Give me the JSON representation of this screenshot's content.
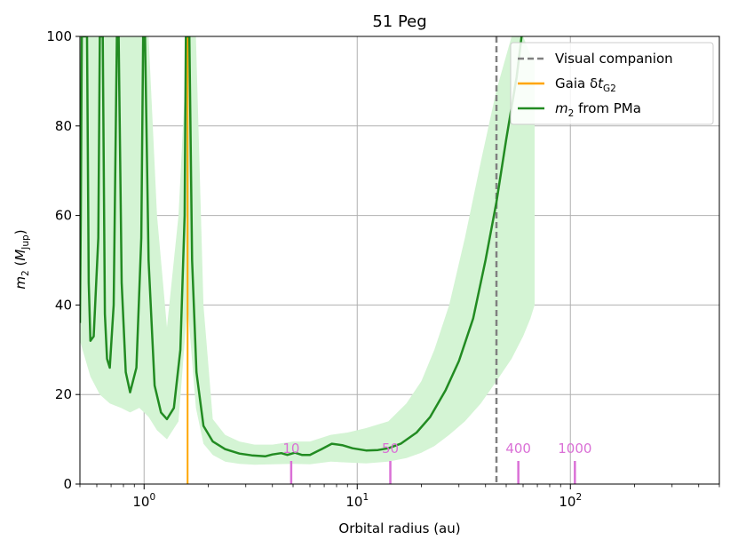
{
  "chart_data": {
    "type": "line",
    "title": "51 Peg",
    "xlabel": "Orbital radius (au)",
    "ylabel": "m2 (MJup)",
    "xscale": "log",
    "xlim": [
      0.5,
      500
    ],
    "ylim": [
      0,
      100
    ],
    "grid": true,
    "legend_placement": "top-right",
    "x_ticks": [
      {
        "value": 1,
        "base": "10",
        "exp": "0"
      },
      {
        "value": 10,
        "base": "10",
        "exp": "1"
      },
      {
        "value": 100,
        "base": "10",
        "exp": "2"
      }
    ],
    "y_ticks": [
      0,
      20,
      40,
      60,
      80,
      100
    ],
    "legend": [
      {
        "label": "Visual companion",
        "style": "dashed",
        "color": "#808080"
      },
      {
        "label": "Gaia δt",
        "sub": "G2",
        "style": "solid",
        "color": "#ffa500"
      },
      {
        "label": " from PMa",
        "prefix": "m",
        "sub": "2",
        "style": "solid",
        "color": "#228b22"
      }
    ],
    "colors": {
      "curve": "#228b22",
      "band": "#d4f4d4",
      "visual_companion": "#808080",
      "gaia": "#ffa500",
      "period_marks": "#da70d6",
      "grid": "#b0b0b0"
    },
    "visual_companion_x": 45,
    "gaia_x": 1.6,
    "period_marks": [
      {
        "label": "10",
        "x": 4.9
      },
      {
        "label": "50",
        "x": 14.3
      },
      {
        "label": "400",
        "x": 57
      },
      {
        "label": "1000",
        "x": 105
      }
    ],
    "series": [
      {
        "name": "m2 from PMa",
        "points": [
          [
            0.5,
            36
          ],
          [
            0.505,
            60
          ],
          [
            0.51,
            100
          ],
          [
            0.54,
            100
          ],
          [
            0.55,
            45
          ],
          [
            0.56,
            32
          ],
          [
            0.58,
            33
          ],
          [
            0.61,
            55
          ],
          [
            0.62,
            100
          ],
          [
            0.64,
            100
          ],
          [
            0.655,
            38
          ],
          [
            0.67,
            28
          ],
          [
            0.69,
            26
          ],
          [
            0.72,
            40
          ],
          [
            0.745,
            100
          ],
          [
            0.76,
            100
          ],
          [
            0.785,
            45
          ],
          [
            0.82,
            25
          ],
          [
            0.86,
            20.5
          ],
          [
            0.92,
            26
          ],
          [
            0.97,
            55
          ],
          [
            0.99,
            100
          ],
          [
            1.01,
            100
          ],
          [
            1.05,
            50
          ],
          [
            1.12,
            22
          ],
          [
            1.2,
            16
          ],
          [
            1.28,
            14.5
          ],
          [
            1.38,
            17
          ],
          [
            1.48,
            30
          ],
          [
            1.55,
            60
          ],
          [
            1.57,
            100
          ],
          [
            1.63,
            100
          ],
          [
            1.68,
            50
          ],
          [
            1.76,
            25
          ],
          [
            1.9,
            13
          ],
          [
            2.1,
            9.5
          ],
          [
            2.4,
            7.8
          ],
          [
            2.8,
            6.8
          ],
          [
            3.2,
            6.4
          ],
          [
            3.7,
            6.2
          ],
          [
            4.0,
            6.6
          ],
          [
            4.4,
            6.9
          ],
          [
            4.7,
            6.5
          ],
          [
            5.1,
            7.0
          ],
          [
            5.5,
            6.5
          ],
          [
            6.0,
            6.5
          ],
          [
            6.8,
            7.8
          ],
          [
            7.6,
            9.0
          ],
          [
            8.5,
            8.7
          ],
          [
            9.5,
            8.0
          ],
          [
            11,
            7.5
          ],
          [
            12.5,
            7.6
          ],
          [
            14,
            8.0
          ],
          [
            16,
            9.0
          ],
          [
            19,
            11.5
          ],
          [
            22,
            15
          ],
          [
            26,
            21
          ],
          [
            30,
            27.5
          ],
          [
            35,
            37
          ],
          [
            40,
            50
          ],
          [
            45,
            63
          ],
          [
            50,
            77
          ],
          [
            56,
            91
          ],
          [
            59,
            100
          ]
        ],
        "band": [
          [
            0.5,
            32,
            100
          ],
          [
            0.56,
            24,
            100
          ],
          [
            0.62,
            20,
            100
          ],
          [
            0.69,
            18,
            100
          ],
          [
            0.78,
            17,
            100
          ],
          [
            0.86,
            16,
            100
          ],
          [
            0.95,
            17,
            100
          ],
          [
            1.05,
            15,
            100
          ],
          [
            1.15,
            12,
            60
          ],
          [
            1.28,
            10,
            35
          ],
          [
            1.45,
            14,
            60
          ],
          [
            1.6,
            40,
            100
          ],
          [
            1.75,
            17,
            100
          ],
          [
            1.9,
            9,
            40
          ],
          [
            2.1,
            6.5,
            14.5
          ],
          [
            2.4,
            5,
            11
          ],
          [
            2.8,
            4.5,
            9.5
          ],
          [
            3.3,
            4.3,
            8.8
          ],
          [
            4,
            4.4,
            8.8
          ],
          [
            5,
            4.5,
            9.5
          ],
          [
            6,
            4.4,
            9.5
          ],
          [
            7.5,
            5,
            11
          ],
          [
            9,
            4.8,
            11.5
          ],
          [
            11,
            4.6,
            12.5
          ],
          [
            14,
            5,
            14
          ],
          [
            17,
            5.8,
            18
          ],
          [
            20,
            7,
            23
          ],
          [
            23,
            8.5,
            30
          ],
          [
            27,
            11,
            40
          ],
          [
            32,
            14,
            55
          ],
          [
            38,
            18,
            72
          ],
          [
            45,
            23,
            88
          ],
          [
            53,
            28,
            100
          ],
          [
            60,
            33,
            100
          ],
          [
            65,
            37,
            96
          ],
          [
            68,
            40,
            95
          ]
        ]
      }
    ]
  }
}
